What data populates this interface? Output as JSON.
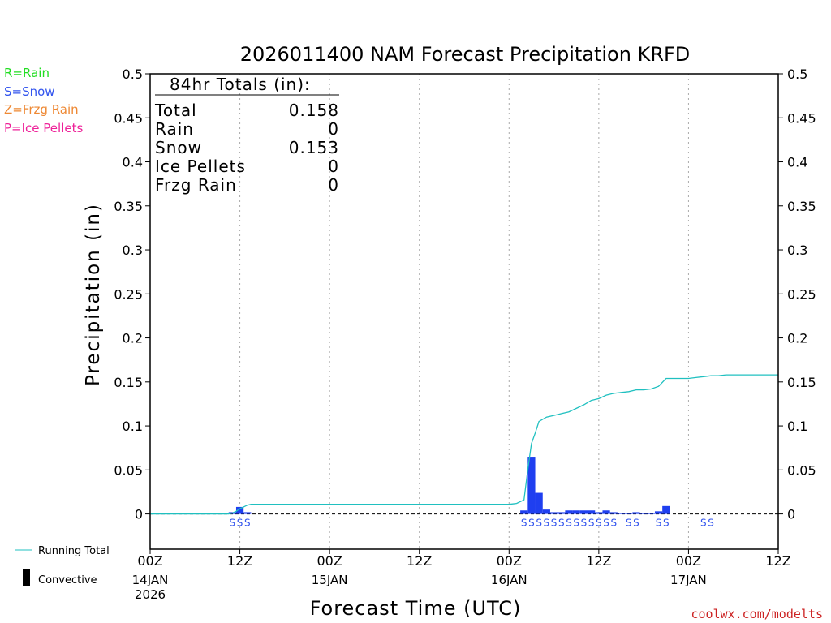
{
  "chart_data": {
    "type": "bar",
    "title": "2026011400 NAM Forecast Precipitation KRFD",
    "xlabel": "Forecast Time (UTC)",
    "ylabel": "Precipitation (in)",
    "ylim": [
      -0.04,
      0.5
    ],
    "xlim_hours": [
      0,
      84
    ],
    "y_ticks": [
      0,
      0.05,
      0.1,
      0.15,
      0.2,
      0.25,
      0.3,
      0.35,
      0.4,
      0.45,
      0.5
    ],
    "y_tick_labels": [
      "0",
      "0.05",
      "0.1",
      "0.15",
      "0.2",
      "0.25",
      "0.3",
      "0.35",
      "0.4",
      "0.45",
      "0.5"
    ],
    "x_ticks": [
      {
        "hour": 0,
        "label": "00Z",
        "date": "14JAN",
        "year": "2026"
      },
      {
        "hour": 12,
        "label": "12Z",
        "date": "",
        "year": ""
      },
      {
        "hour": 24,
        "label": "00Z",
        "date": "15JAN",
        "year": ""
      },
      {
        "hour": 36,
        "label": "12Z",
        "date": "",
        "year": ""
      },
      {
        "hour": 48,
        "label": "00Z",
        "date": "16JAN",
        "year": ""
      },
      {
        "hour": 60,
        "label": "12Z",
        "date": "",
        "year": ""
      },
      {
        "hour": 72,
        "label": "00Z",
        "date": "17JAN",
        "year": ""
      },
      {
        "hour": 84,
        "label": "12Z",
        "date": "",
        "year": ""
      }
    ],
    "grid": true,
    "totals": {
      "heading": "84hr Totals (in):",
      "rows": [
        {
          "label": "Total",
          "value": "0.158"
        },
        {
          "label": "Rain",
          "value": "0"
        },
        {
          "label": "Snow",
          "value": "0.153"
        },
        {
          "label": "Ice Pellets",
          "value": "0"
        },
        {
          "label": "Frzg Rain",
          "value": "0"
        }
      ]
    },
    "series": [
      {
        "name": "Snow",
        "type": "bar",
        "color": "#1f3ff0",
        "bar_width_hours": 1,
        "hours": [
          11,
          12,
          13,
          50,
          51,
          52,
          53,
          54,
          55,
          56,
          57,
          58,
          59,
          60,
          61,
          62,
          63,
          64,
          65,
          66,
          67,
          68,
          69
        ],
        "values": [
          0.002,
          0.008,
          0.002,
          0.004,
          0.065,
          0.024,
          0.005,
          0.002,
          0.002,
          0.004,
          0.004,
          0.004,
          0.004,
          0.002,
          0.004,
          0.002,
          0.001,
          0.001,
          0.002,
          0.001,
          0.001,
          0.003,
          0.009
        ]
      },
      {
        "name": "Running Total",
        "type": "line",
        "color": "#20c0c0",
        "hours": [
          0,
          10.5,
          11,
          11.5,
          12,
          12.5,
          13,
          13.5,
          14,
          15,
          20,
          30,
          40,
          48,
          49,
          50,
          50.5,
          51,
          51.5,
          52,
          53,
          54,
          55,
          56,
          57,
          58,
          59,
          60,
          61,
          62,
          63,
          64,
          65,
          66,
          67,
          68,
          69,
          70,
          71,
          72,
          73,
          74,
          75,
          76,
          77,
          78,
          79,
          80,
          81,
          82,
          83,
          84
        ],
        "values": [
          0,
          0,
          0.001,
          0.003,
          0.006,
          0.008,
          0.01,
          0.011,
          0.011,
          0.011,
          0.011,
          0.011,
          0.011,
          0.011,
          0.012,
          0.016,
          0.05,
          0.08,
          0.092,
          0.105,
          0.11,
          0.112,
          0.114,
          0.116,
          0.12,
          0.124,
          0.129,
          0.131,
          0.135,
          0.137,
          0.138,
          0.139,
          0.141,
          0.141,
          0.142,
          0.145,
          0.154,
          0.154,
          0.154,
          0.154,
          0.155,
          0.156,
          0.157,
          0.157,
          0.158,
          0.158,
          0.158,
          0.158,
          0.158,
          0.158,
          0.158,
          0.158
        ]
      }
    ],
    "type_markers": [
      {
        "hour": 11,
        "text": "S"
      },
      {
        "hour": 12,
        "text": "S"
      },
      {
        "hour": 13,
        "text": "S"
      },
      {
        "hour": 50,
        "text": "S"
      },
      {
        "hour": 51,
        "text": "S"
      },
      {
        "hour": 52,
        "text": "S"
      },
      {
        "hour": 53,
        "text": "S"
      },
      {
        "hour": 54,
        "text": "S"
      },
      {
        "hour": 55,
        "text": "S"
      },
      {
        "hour": 56,
        "text": "S"
      },
      {
        "hour": 57,
        "text": "S"
      },
      {
        "hour": 58,
        "text": "S"
      },
      {
        "hour": 59,
        "text": "S"
      },
      {
        "hour": 60,
        "text": "S"
      },
      {
        "hour": 61,
        "text": "S"
      },
      {
        "hour": 62,
        "text": "S"
      },
      {
        "hour": 64,
        "text": "S"
      },
      {
        "hour": 65,
        "text": "S"
      },
      {
        "hour": 68,
        "text": "S"
      },
      {
        "hour": 69,
        "text": "S"
      },
      {
        "hour": 74,
        "text": "S"
      },
      {
        "hour": 75,
        "text": "S"
      }
    ],
    "legend": {
      "precip_types": [
        {
          "text": "R=Rain",
          "color": "#22dd22"
        },
        {
          "text": "S=Snow",
          "color": "#3355ee"
        },
        {
          "text": "Z=Frzg Rain",
          "color": "#ee8833"
        },
        {
          "text": "P=Ice Pellets",
          "color": "#ee2299"
        }
      ],
      "running_total_label": "Running Total",
      "convective_label": "Convective"
    },
    "credit": "coolwx.com/modelts",
    "credit_color": "#cc2222"
  }
}
